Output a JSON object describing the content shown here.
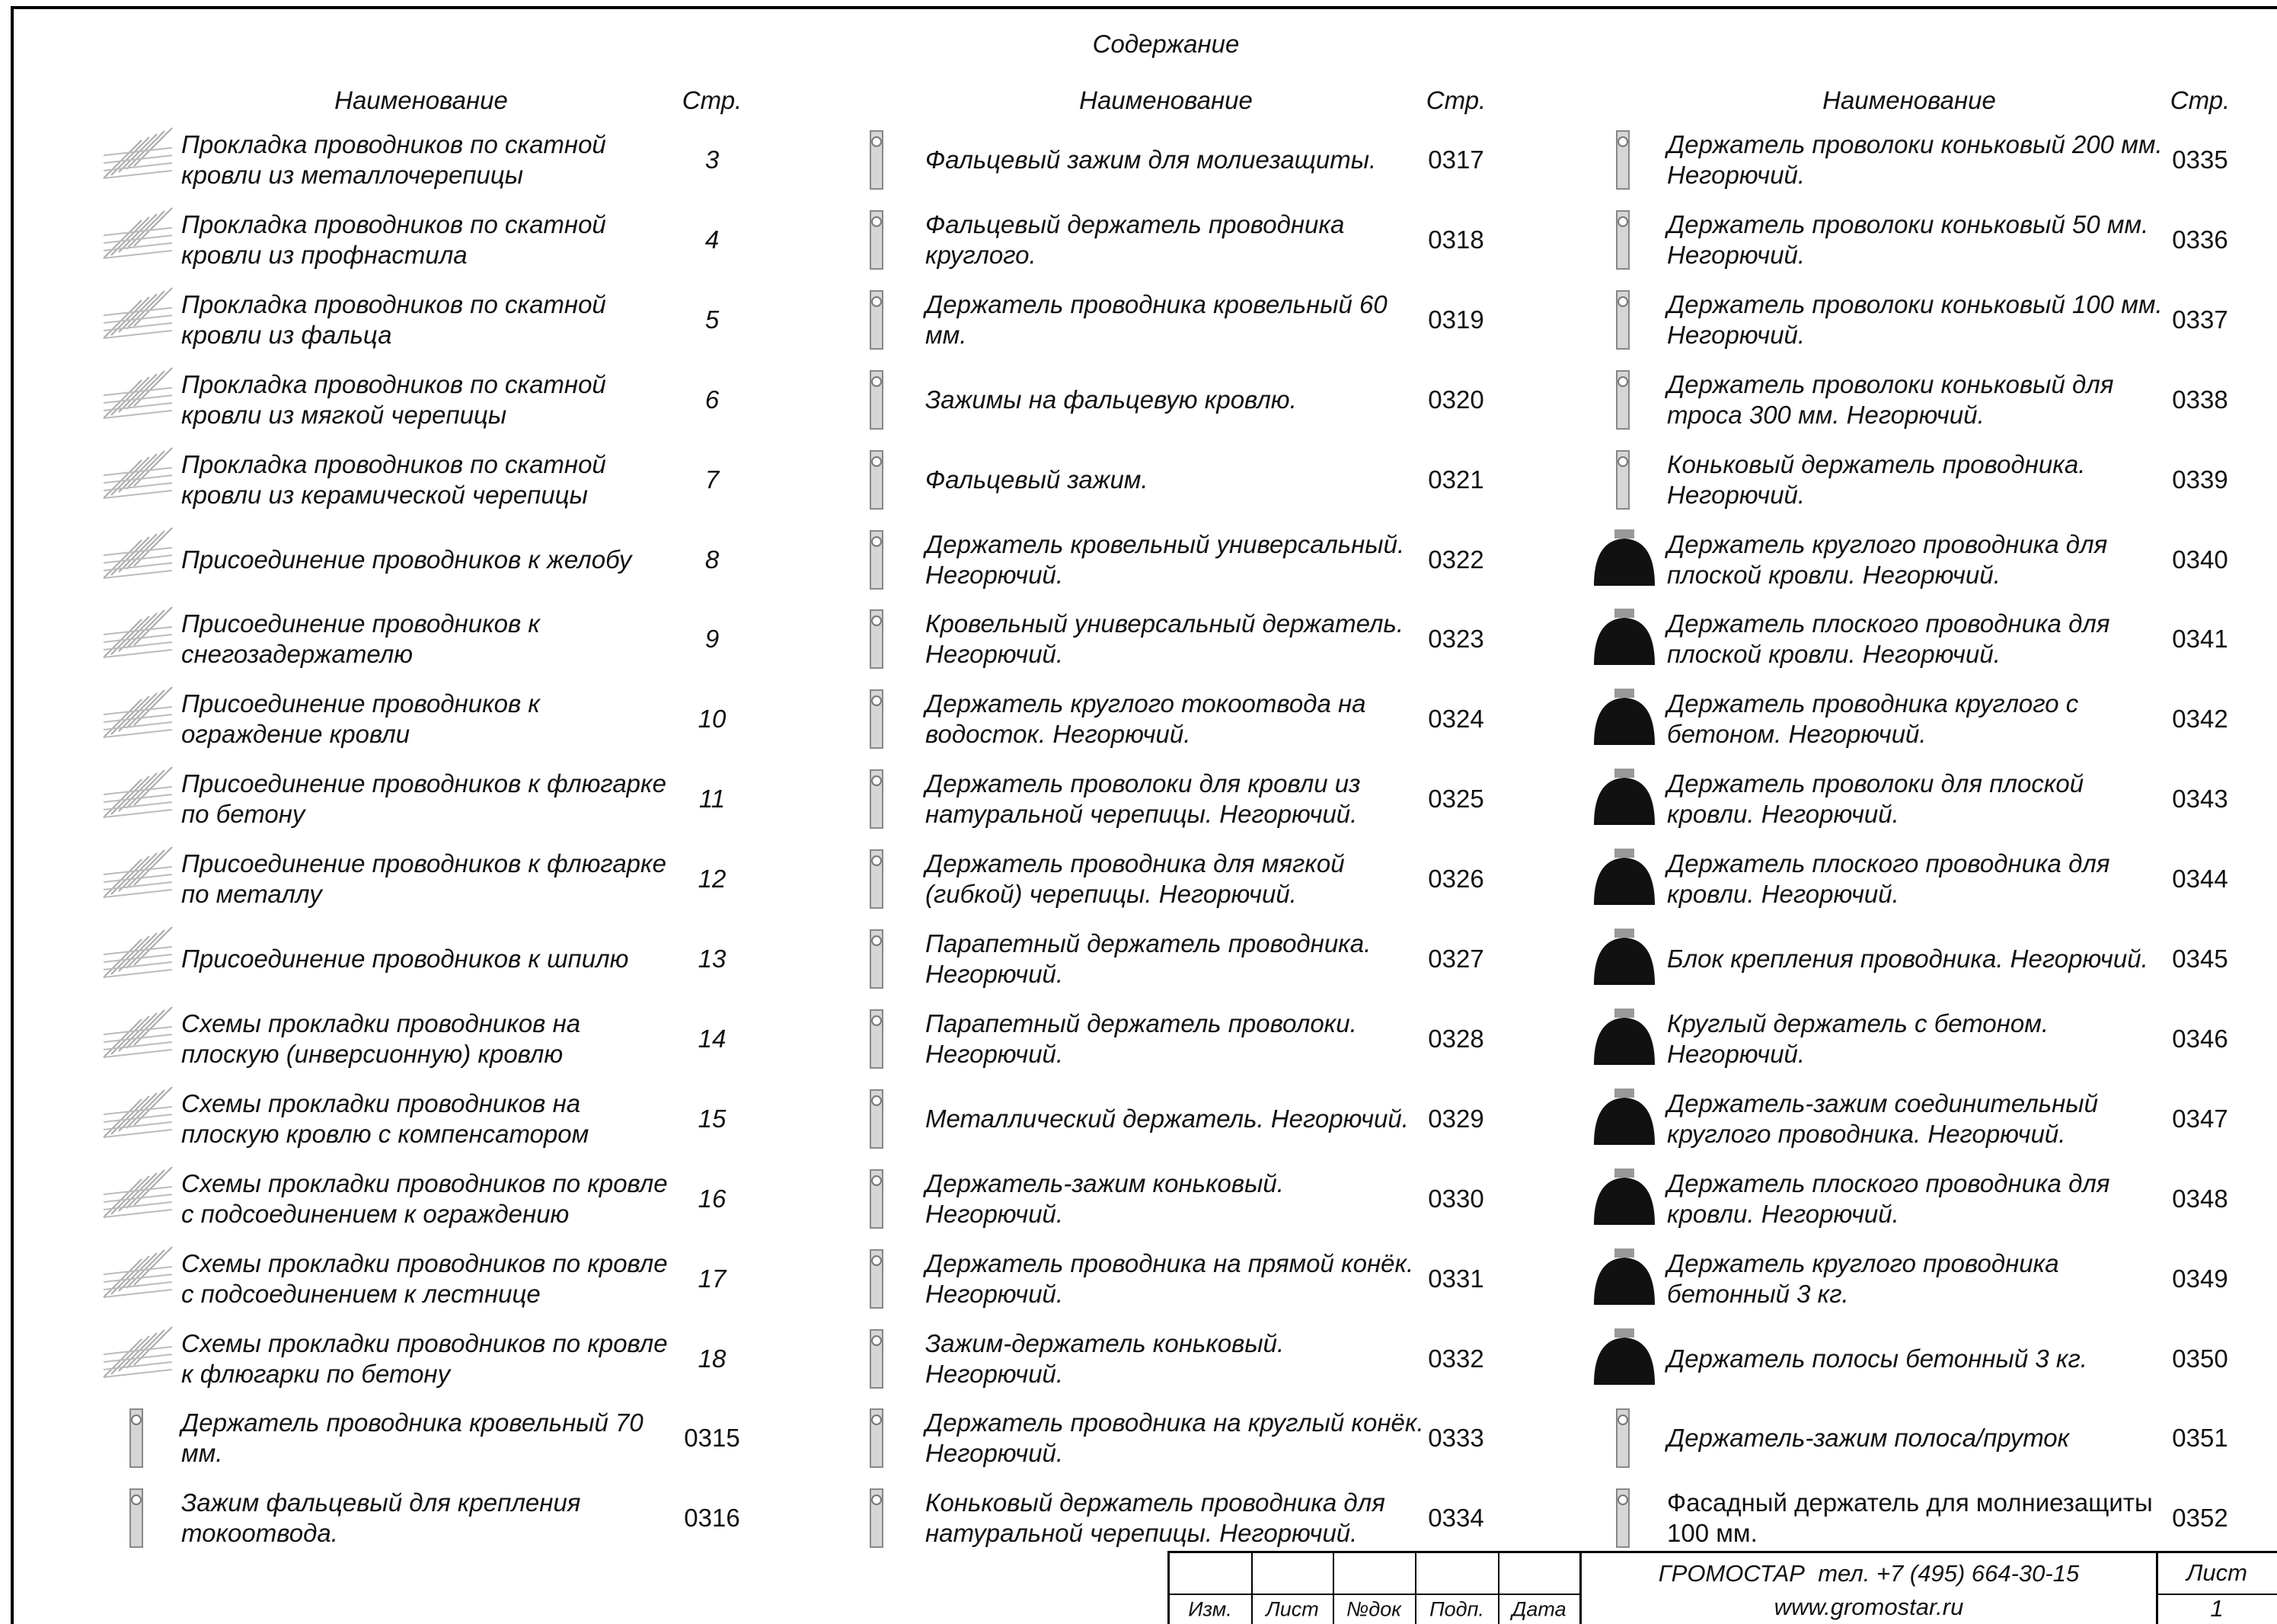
{
  "title": "Содержание",
  "columns": [
    {
      "header_name": "Наименование",
      "header_page": "Стр.",
      "items": [
        {
          "name": "Прокладка проводников по скатной кровли из металлочерепицы",
          "page": "3"
        },
        {
          "name": "Прокладка проводников по скатной кровли из профнастила",
          "page": "4"
        },
        {
          "name": "Прокладка проводников по скатной кровли из фальца",
          "page": "5"
        },
        {
          "name": "Прокладка проводников по скатной кровли из мягкой черепицы",
          "page": "6"
        },
        {
          "name": "Прокладка проводников по скатной кровли из керамической черепицы",
          "page": "7"
        },
        {
          "name": "Присоединение проводников к желобу",
          "page": "8"
        },
        {
          "name": "Присоединение проводников к снегозадержателю",
          "page": "9"
        },
        {
          "name": "Присоединение проводников к ограждение кровли",
          "page": "10"
        },
        {
          "name": "Присоединение проводников к флюгарке по бетону",
          "page": "11"
        },
        {
          "name": "Присоединение проводников к флюгарке по металлу",
          "page": "12"
        },
        {
          "name": "Присоединение проводников к шпилю",
          "page": "13"
        },
        {
          "name": "Схемы прокладки проводников на плоскую (инверсионную) кровлю",
          "page": "14"
        },
        {
          "name": "Схемы прокладки проводников на плоскую кровлю с компенсатором",
          "page": "15"
        },
        {
          "name": "Схемы прокладки проводников по кровле с подсоединением к ограждению",
          "page": "16"
        },
        {
          "name": "Схемы прокладки проводников по кровле с подсоединением к лестнице",
          "page": "17"
        },
        {
          "name": "Схемы прокладки проводников по кровле к флюгарки по бетону",
          "page": "18"
        },
        {
          "name": "Держатель проводника кровельный 70 мм.",
          "page": "0315"
        },
        {
          "name": "Зажим фальцевый для крепления токоотвода.",
          "page": "0316"
        }
      ]
    },
    {
      "header_name": "Наименование",
      "header_page": "Стр.",
      "items": [
        {
          "name": "Фальцевый зажим для молиезащиты.",
          "page": "0317"
        },
        {
          "name": "Фальцевый держатель проводника круглого.",
          "page": "0318"
        },
        {
          "name": "Держатель проводника кровельный 60 мм.",
          "page": "0319"
        },
        {
          "name": "Зажимы на фальцевую кровлю.",
          "page": "0320"
        },
        {
          "name": "Фальцевый зажим.",
          "page": "0321"
        },
        {
          "name": "Держатель кровельный универсальный. Негорючий.",
          "page": "0322"
        },
        {
          "name": "Кровельный универсальный держатель. Негорючий.",
          "page": "0323"
        },
        {
          "name": "Держатель круглого токоотвода на водосток. Негорючий.",
          "page": "0324"
        },
        {
          "name": "Держатель проволоки для кровли из натуральной черепицы. Негорючий.",
          "page": "0325"
        },
        {
          "name": "Держатель проводника для мягкой (гибкой) черепицы. Негорючий.",
          "page": "0326"
        },
        {
          "name": "Парапетный держатель проводника. Негорючий.",
          "page": "0327"
        },
        {
          "name": "Парапетный держатель проволоки. Негорючий.",
          "page": "0328"
        },
        {
          "name": "Металлический держатель. Негорючий.",
          "page": "0329"
        },
        {
          "name": "Держатель-зажим коньковый. Негорючий.",
          "page": "0330"
        },
        {
          "name": "Держатель проводника на прямой конёк. Негорючий.",
          "page": "0331"
        },
        {
          "name": "Зажим-держатель коньковый. Негорючий.",
          "page": "0332"
        },
        {
          "name": "Держатель проводника на круглый конёк. Негорючий.",
          "page": "0333"
        },
        {
          "name": "Коньковый держатель проводника для натуральной черепицы. Негорючий.",
          "page": "0334"
        }
      ]
    },
    {
      "header_name": "Наименование",
      "header_page": "Стр.",
      "items": [
        {
          "name": "Держатель проволоки коньковый 200 мм. Негорючий.",
          "page": "0335"
        },
        {
          "name": "Держатель проволоки коньковый 50 мм. Негорючий.",
          "page": "0336"
        },
        {
          "name": "Держатель проволоки коньковый 100 мм. Негорючий.",
          "page": "0337"
        },
        {
          "name": "Держатель проволоки коньковый для троса 300 мм. Негорючий.",
          "page": "0338"
        },
        {
          "name": "Коньковый держатель проводника. Негорючий.",
          "page": "0339"
        },
        {
          "name": "Держатель круглого проводника для плоской кровли. Негорючий.",
          "page": "0340"
        },
        {
          "name": "Держатель плоского проводника для плоской кровли. Негорючий.",
          "page": "0341"
        },
        {
          "name": "Держатель проводника круглого с бетоном. Негорючий.",
          "page": "0342"
        },
        {
          "name": "Держатель проволоки для плоской кровли. Негорючий.",
          "page": "0343"
        },
        {
          "name": "Держатель плоского проводника для кровли. Негорючий.",
          "page": "0344"
        },
        {
          "name": "Блок крепления проводника. Негорючий.",
          "page": "0345"
        },
        {
          "name": "Круглый держатель с бетоном. Негорючий.",
          "page": "0346"
        },
        {
          "name": "Держатель-зажим соединительный круглого проводника. Негорючий.",
          "page": "0347"
        },
        {
          "name": "Держатель плоского проводника для кровли. Негорючий.",
          "page": "0348"
        },
        {
          "name": "Держатель круглого проводника бетонный 3 кг.",
          "page": "0349"
        },
        {
          "name": "Держатель полосы бетонный 3 кг.",
          "page": "0350"
        },
        {
          "name": "Держатель-зажим полоса/пруток",
          "page": "0351"
        },
        {
          "name": "Фасадный держатель для молниезащиты 100 мм.",
          "page": "0352"
        }
      ]
    }
  ],
  "footer": {
    "company": "ГРОМОСТАР  тел. +7 (495) 664-30-15",
    "website": "www.gromostar.ru",
    "sheet_label": "Лист",
    "sheet_number": "1",
    "stamp": [
      "Изм.",
      "Лист",
      "№док",
      "Подп.",
      "Дата"
    ]
  }
}
